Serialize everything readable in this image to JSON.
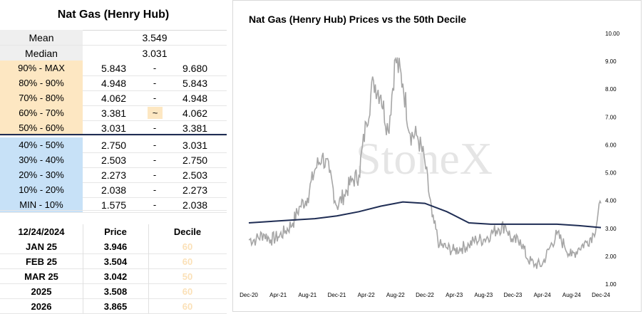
{
  "table": {
    "title": "Nat Gas (Henry Hub)",
    "mean_label": "Mean",
    "mean_value": "3.549",
    "median_label": "Median",
    "median_value": "3.031",
    "deciles": [
      {
        "label": "90% - MAX",
        "low": "5.843",
        "sep": "-",
        "high": "9.680",
        "zone": "upper"
      },
      {
        "label": "80% - 90%",
        "low": "4.948",
        "sep": "-",
        "high": "5.843",
        "zone": "upper"
      },
      {
        "label": "70% - 80%",
        "low": "4.062",
        "sep": "-",
        "high": "4.948",
        "zone": "upper"
      },
      {
        "label": "60% - 70%",
        "low": "3.381",
        "sep": "~",
        "high": "4.062",
        "zone": "upper"
      },
      {
        "label": "50% - 60%",
        "low": "3.031",
        "sep": "-",
        "high": "3.381",
        "zone": "upper"
      },
      {
        "label": "40% - 50%",
        "low": "2.750",
        "sep": "-",
        "high": "3.031",
        "zone": "lower"
      },
      {
        "label": "30% - 40%",
        "low": "2.503",
        "sep": "-",
        "high": "2.750",
        "zone": "lower"
      },
      {
        "label": "20% - 30%",
        "low": "2.273",
        "sep": "-",
        "high": "2.503",
        "zone": "lower"
      },
      {
        "label": "10% - 20%",
        "low": "2.038",
        "sep": "-",
        "high": "2.273",
        "zone": "lower"
      },
      {
        "label": "MIN - 10%",
        "low": "1.575",
        "sep": "-",
        "high": "2.038",
        "zone": "lower"
      }
    ],
    "forecast_header": {
      "date": "12/24/2024",
      "price": "Price",
      "decile": "Decile"
    },
    "forecast_rows": [
      {
        "period": "JAN 25",
        "price": "3.946",
        "decile": "60"
      },
      {
        "period": "FEB 25",
        "price": "3.504",
        "decile": "60"
      },
      {
        "period": "MAR 25",
        "price": "3.042",
        "decile": "50"
      },
      {
        "period": "2025",
        "price": "3.508",
        "decile": "60"
      },
      {
        "period": "2026",
        "price": "3.865",
        "decile": "60"
      }
    ]
  },
  "colors": {
    "upper_zone": "#fde7c2",
    "lower_zone": "#c7e1f7",
    "price_series": "#a6a6a6",
    "decile_series": "#1f2d54"
  },
  "chart_data": {
    "type": "line",
    "title": "Nat Gas (Henry Hub) Prices vs the 50th Decile",
    "watermark": "StoneX",
    "xlabel": "",
    "ylabel": "",
    "x_ticks": [
      "Dec-20",
      "Apr-21",
      "Aug-21",
      "Dec-21",
      "Apr-22",
      "Aug-22",
      "Dec-22",
      "Apr-23",
      "Aug-23",
      "Dec-23",
      "Apr-24",
      "Aug-24",
      "Dec-24"
    ],
    "y_ticks": [
      "1.00",
      "2.00",
      "3.00",
      "4.00",
      "5.00",
      "6.00",
      "7.00",
      "8.00",
      "9.00",
      "10.00"
    ],
    "ylim": [
      1,
      10
    ],
    "y_axis_side": "right",
    "grid": false,
    "legend": "none",
    "series": [
      {
        "role": "price",
        "x": [
          "2020-12",
          "2021-01",
          "2021-02",
          "2021-03",
          "2021-04",
          "2021-05",
          "2021-06",
          "2021-07",
          "2021-08",
          "2021-09",
          "2021-10",
          "2021-11",
          "2021-12",
          "2022-01",
          "2022-02",
          "2022-03",
          "2022-04",
          "2022-05",
          "2022-06",
          "2022-07",
          "2022-08",
          "2022-09",
          "2022-10",
          "2022-11",
          "2022-12",
          "2023-01",
          "2023-02",
          "2023-03",
          "2023-04",
          "2023-05",
          "2023-06",
          "2023-07",
          "2023-08",
          "2023-09",
          "2023-10",
          "2023-11",
          "2023-12",
          "2024-01",
          "2024-02",
          "2024-03",
          "2024-04",
          "2024-05",
          "2024-06",
          "2024-07",
          "2024-08",
          "2024-09",
          "2024-10",
          "2024-11",
          "2024-12"
        ],
        "values": [
          2.6,
          2.6,
          2.8,
          2.6,
          2.7,
          2.9,
          3.2,
          3.8,
          4.1,
          5.1,
          5.6,
          5.0,
          3.8,
          4.2,
          4.7,
          4.9,
          6.8,
          8.3,
          7.8,
          6.5,
          9.1,
          8.2,
          6.4,
          6.3,
          5.4,
          3.4,
          2.4,
          2.3,
          2.2,
          2.3,
          2.4,
          2.6,
          2.6,
          2.8,
          3.0,
          3.1,
          2.5,
          2.6,
          1.9,
          1.7,
          1.7,
          2.3,
          2.8,
          2.4,
          2.0,
          2.3,
          2.5,
          2.8,
          3.9
        ]
      },
      {
        "role": "decile",
        "x": [
          "2020-12",
          "2021-03",
          "2021-06",
          "2021-09",
          "2021-12",
          "2022-03",
          "2022-06",
          "2022-09",
          "2022-12",
          "2023-03",
          "2023-06",
          "2023-09",
          "2023-12",
          "2024-03",
          "2024-06",
          "2024-09",
          "2024-12"
        ],
        "values": [
          3.2,
          3.25,
          3.3,
          3.35,
          3.45,
          3.6,
          3.8,
          3.95,
          3.9,
          3.6,
          3.2,
          3.15,
          3.15,
          3.15,
          3.15,
          3.1,
          3.03
        ]
      }
    ]
  }
}
